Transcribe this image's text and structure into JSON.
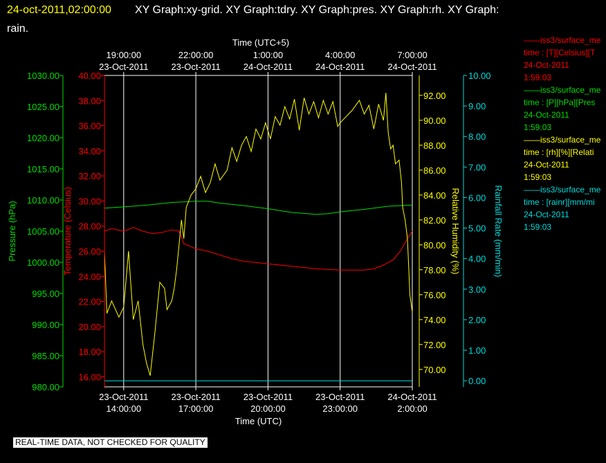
{
  "header": {
    "timestamp": "24-oct-2011,02:00:00",
    "graphs_line1": "XY Graph:xy-grid.  XY Graph:tdry.  XY Graph:pres.  XY Graph:rh.  XY Graph:",
    "graphs_line2": "rain."
  },
  "notice": "REAL-TIME DATA, NOT CHECKED FOR QUALITY",
  "legend": [
    {
      "series": "tdry",
      "color": "#ff0000",
      "line": "——iss3/surface_me",
      "label": "time : [T][Celsius][T",
      "date": "24-Oct-2011",
      "time": "1:59:03"
    },
    {
      "series": "pres",
      "color": "#00dd00",
      "line": "——iss3/surface_me",
      "label": "time : [P][hPa][Pres",
      "date": "24-Oct-2011",
      "time": "1:59:03"
    },
    {
      "series": "rh",
      "color": "#ffff00",
      "line": "——iss3/surface_me",
      "label": "time : [rh][%][Relati",
      "date": "24-Oct-2011",
      "time": "1:59:03"
    },
    {
      "series": "rain",
      "color": "#00dddd",
      "line": "——iss3/surface_me",
      "label": "time : [rainr][mm/mi",
      "date": "24-Oct-2011",
      "time": "1:59:03"
    }
  ],
  "chart_data": {
    "type": "line",
    "x_range_utc_hours": [
      13.2,
      26.0
    ],
    "grid": "vertical",
    "axes": {
      "bottom": {
        "title": "Time (UTC)",
        "ticks": [
          {
            "x": 14,
            "date": "23-Oct-2011",
            "time": "14:00:00"
          },
          {
            "x": 17,
            "date": "23-Oct-2011",
            "time": "17:00:00"
          },
          {
            "x": 20,
            "date": "23-Oct-2011",
            "time": "20:00:00"
          },
          {
            "x": 23,
            "date": "23-Oct-2011",
            "time": "23:00:00"
          },
          {
            "x": 26,
            "date": "24-Oct-2011",
            "time": "2:00:00"
          }
        ]
      },
      "top": {
        "title": "Time (UTC+5)",
        "ticks": [
          {
            "x": 14,
            "time": "19:00:00",
            "date": "23-Oct-2011"
          },
          {
            "x": 17,
            "time": "22:00:00",
            "date": "23-Oct-2011"
          },
          {
            "x": 20,
            "time": "1:00:00",
            "date": "24-Oct-2011"
          },
          {
            "x": 23,
            "time": "4:00:00",
            "date": "24-Oct-2011"
          },
          {
            "x": 26,
            "time": "7:00:00",
            "date": "24-Oct-2011"
          }
        ]
      },
      "pressure": {
        "title": "Pressure (hPa)",
        "color": "#00dd00",
        "range": [
          980,
          1030
        ],
        "ticks": [
          "980.00",
          "985.00",
          "990.00",
          "995.00",
          "1000.00",
          "1005.00",
          "1010.00",
          "1015.00",
          "1020.00",
          "1025.00",
          "1030.00"
        ]
      },
      "temperature": {
        "title": "Temperature (Celsius)",
        "color": "#ff0000",
        "range": [
          15.2,
          40
        ],
        "ticks": [
          "16.00",
          "18.00",
          "20.00",
          "22.00",
          "24.00",
          "26.00",
          "28.00",
          "30.00",
          "32.00",
          "34.00",
          "36.00",
          "38.00",
          "40.00"
        ]
      },
      "humidity": {
        "title": "Relative Humidity (%)",
        "color": "#ffff00",
        "range": [
          68.6,
          93.6
        ],
        "ticks": [
          "70.00",
          "72.00",
          "74.00",
          "76.00",
          "78.00",
          "80.00",
          "82.00",
          "84.00",
          "86.00",
          "88.00",
          "90.00",
          "92.00"
        ]
      },
      "rainfall": {
        "title": "Rainfall Rate (mm/min)",
        "color": "#00dddd",
        "range": [
          -0.2,
          10
        ],
        "ticks": [
          "0.00",
          "1.00",
          "2.00",
          "3.00",
          "4.00",
          "5.00",
          "6.00",
          "7.00",
          "8.00",
          "9.00",
          "10.00"
        ]
      }
    },
    "series": [
      {
        "id": "pres",
        "axis": "pressure",
        "color": "#00dd00",
        "points": [
          [
            13.2,
            1008.7
          ],
          [
            14,
            1008.9
          ],
          [
            15,
            1009.2
          ],
          [
            16,
            1009.6
          ],
          [
            17,
            1009.8
          ],
          [
            17.5,
            1009.8
          ],
          [
            18,
            1009.5
          ],
          [
            19,
            1009.1
          ],
          [
            20,
            1008.6
          ],
          [
            21,
            1008.0
          ],
          [
            22,
            1007.7
          ],
          [
            22.5,
            1007.8
          ],
          [
            23,
            1008.1
          ],
          [
            24,
            1008.5
          ],
          [
            25,
            1009.0
          ],
          [
            26,
            1009.2
          ]
        ]
      },
      {
        "id": "tdry",
        "axis": "temperature",
        "color": "#ff0000",
        "points": [
          [
            13.2,
            27.6
          ],
          [
            13.5,
            27.8
          ],
          [
            14,
            27.6
          ],
          [
            14.4,
            27.9
          ],
          [
            14.8,
            27.6
          ],
          [
            15.2,
            27.4
          ],
          [
            15.6,
            27.5
          ],
          [
            16,
            27.7
          ],
          [
            16.3,
            27.6
          ],
          [
            16.5,
            26.6
          ],
          [
            17,
            26.2
          ],
          [
            17.5,
            26.0
          ],
          [
            18,
            25.7
          ],
          [
            18.5,
            25.4
          ],
          [
            19,
            25.2
          ],
          [
            20,
            25.0
          ],
          [
            21,
            24.8
          ],
          [
            22,
            24.6
          ],
          [
            23,
            24.5
          ],
          [
            24,
            24.5
          ],
          [
            24.4,
            24.6
          ],
          [
            24.8,
            24.9
          ],
          [
            25.2,
            25.3
          ],
          [
            25.5,
            26.0
          ],
          [
            25.8,
            27.0
          ],
          [
            26,
            27.6
          ]
        ]
      },
      {
        "id": "rh",
        "axis": "humidity",
        "color": "#ffff00",
        "points": [
          [
            13.2,
            79.5
          ],
          [
            13.3,
            74.5
          ],
          [
            13.5,
            75.5
          ],
          [
            13.8,
            74.2
          ],
          [
            14,
            75
          ],
          [
            14.2,
            79.5
          ],
          [
            14.4,
            74
          ],
          [
            14.6,
            75.5
          ],
          [
            14.8,
            72
          ],
          [
            14.95,
            70.5
          ],
          [
            15.1,
            69.5
          ],
          [
            15.3,
            73
          ],
          [
            15.5,
            77
          ],
          [
            15.7,
            76.5
          ],
          [
            15.8,
            74.8
          ],
          [
            16.0,
            75.5
          ],
          [
            16.1,
            76.5
          ],
          [
            16.2,
            78
          ],
          [
            16.3,
            80
          ],
          [
            16.4,
            82
          ],
          [
            16.5,
            80.5
          ],
          [
            16.6,
            83
          ],
          [
            16.8,
            84
          ],
          [
            17.0,
            84.5
          ],
          [
            17.2,
            85.5
          ],
          [
            17.4,
            84.2
          ],
          [
            17.6,
            85
          ],
          [
            17.8,
            86.5
          ],
          [
            18.0,
            85.2
          ],
          [
            18.3,
            86
          ],
          [
            18.5,
            87.8
          ],
          [
            18.7,
            86.7
          ],
          [
            18.9,
            88
          ],
          [
            19.1,
            88.7
          ],
          [
            19.3,
            87.5
          ],
          [
            19.5,
            89.3
          ],
          [
            19.7,
            88.5
          ],
          [
            19.9,
            89.8
          ],
          [
            20.1,
            88.5
          ],
          [
            20.3,
            90.3
          ],
          [
            20.5,
            89.6
          ],
          [
            20.7,
            91.1
          ],
          [
            20.9,
            90.1
          ],
          [
            21.1,
            91.7
          ],
          [
            21.3,
            89.2
          ],
          [
            21.5,
            91.8
          ],
          [
            21.7,
            90.5
          ],
          [
            21.9,
            91.5
          ],
          [
            22.1,
            90.2
          ],
          [
            22.3,
            91.6
          ],
          [
            22.5,
            90.5
          ],
          [
            22.7,
            91.5
          ],
          [
            22.9,
            89.5
          ],
          [
            23.0,
            89.8
          ],
          [
            23.2,
            90.2
          ],
          [
            23.5,
            90.8
          ],
          [
            23.8,
            91.6
          ],
          [
            24.0,
            90.5
          ],
          [
            24.2,
            91.2
          ],
          [
            24.4,
            89.3
          ],
          [
            24.6,
            91.3
          ],
          [
            24.8,
            90
          ],
          [
            24.9,
            92.2
          ],
          [
            25.0,
            89
          ],
          [
            25.1,
            87.7
          ],
          [
            25.2,
            88
          ],
          [
            25.3,
            86.5
          ],
          [
            25.45,
            86.8
          ],
          [
            25.55,
            85
          ],
          [
            25.6,
            83
          ],
          [
            25.7,
            82
          ],
          [
            25.8,
            80.5
          ],
          [
            25.9,
            76
          ],
          [
            26.0,
            74.6
          ]
        ]
      },
      {
        "id": "rain",
        "axis": "rainfall",
        "color": "#00dddd",
        "points": [
          [
            13.2,
            0.0
          ],
          [
            26.0,
            0.0
          ]
        ]
      }
    ]
  }
}
